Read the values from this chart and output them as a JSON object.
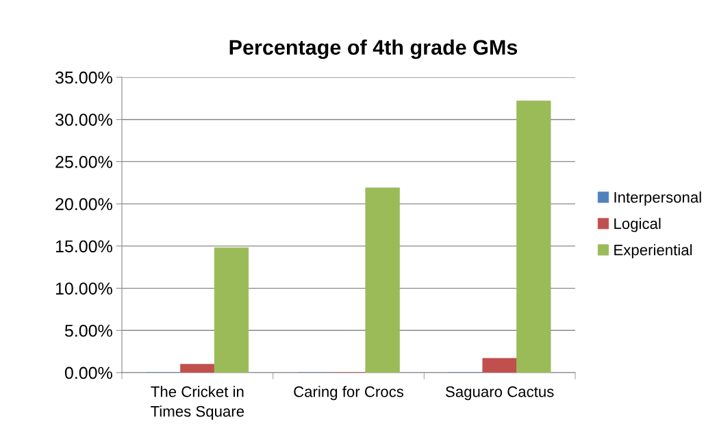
{
  "chart_data": {
    "type": "bar",
    "title": "Percentage of 4th grade GMs",
    "categories": [
      "The Cricket in Times Square",
      "Caring for Crocs",
      "Saguaro Cactus"
    ],
    "series": [
      {
        "name": "Interpersonal",
        "color": "#4f81bd",
        "values": [
          0,
          0,
          0
        ]
      },
      {
        "name": "Logical",
        "color": "#c0504d",
        "values": [
          1.0,
          0,
          1.7
        ]
      },
      {
        "name": "Experiential",
        "color": "#9bbb59",
        "values": [
          14.8,
          21.9,
          32.2
        ]
      }
    ],
    "ylim": [
      0,
      35
    ],
    "yticks": [
      {
        "value": 0,
        "label": "0.00%"
      },
      {
        "value": 5,
        "label": "5.00%"
      },
      {
        "value": 10,
        "label": "10.00%"
      },
      {
        "value": 15,
        "label": "15.00%"
      },
      {
        "value": 20,
        "label": "20.00%"
      },
      {
        "value": 25,
        "label": "25.00%"
      },
      {
        "value": 30,
        "label": "30.00%"
      },
      {
        "value": 35,
        "label": "35.00%"
      }
    ],
    "grid": "y",
    "legend": "right"
  }
}
